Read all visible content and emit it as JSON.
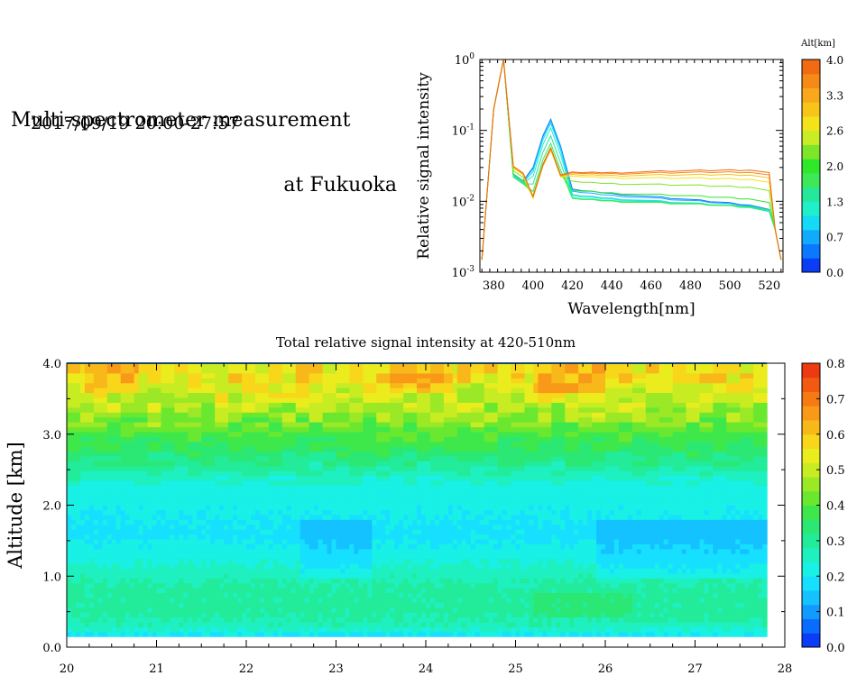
{
  "header": {
    "title_line1": "Multi-spectrometer measurement",
    "title_line2": "at Fukuoka",
    "datetime": "2017/09/19 20:00-27:57"
  },
  "chart_data": [
    {
      "type": "line",
      "xlabel": "Wavelength[nm]",
      "ylabel": "Relative signal intensity",
      "x_ticks": [
        "380",
        "400",
        "420",
        "440",
        "460",
        "480",
        "500",
        "520"
      ],
      "y_tick_labels": [
        {
          "base": "10",
          "exp": "0"
        },
        {
          "base": "10",
          "exp": "-1"
        },
        {
          "base": "10",
          "exp": "-2"
        },
        {
          "base": "10",
          "exp": "-3"
        }
      ],
      "y_scale": "log",
      "xlim": [
        373,
        527
      ],
      "ylim": [
        0.001,
        1
      ],
      "x": [
        374,
        380,
        385,
        390,
        395,
        400,
        405,
        409,
        414,
        420,
        425,
        430,
        435,
        440,
        445,
        450,
        455,
        460,
        465,
        470,
        475,
        480,
        485,
        490,
        495,
        500,
        505,
        510,
        515,
        520,
        523,
        526
      ],
      "shape": [
        0.0015,
        0.2,
        1.0,
        0.03,
        0.024,
        0.025,
        0.07,
        0.12,
        0.05,
        0.024,
        0.023,
        0.023,
        0.022,
        0.022,
        0.021,
        0.021,
        0.021,
        0.021,
        0.021,
        0.02,
        0.02,
        0.02,
        0.02,
        0.019,
        0.019,
        0.019,
        0.018,
        0.018,
        0.017,
        0.016,
        0.004,
        0.0015
      ],
      "series": [
        {
          "alt": 0.2,
          "peak2": 1.2,
          "cont": 0.62,
          "tilt": 0.95
        },
        {
          "alt": 0.5,
          "peak2": 1.15,
          "cont": 0.58,
          "tilt": 0.96
        },
        {
          "alt": 0.8,
          "peak2": 1.05,
          "cont": 0.52,
          "tilt": 0.97
        },
        {
          "alt": 1.1,
          "peak2": 0.9,
          "cont": 0.5,
          "tilt": 0.98
        },
        {
          "alt": 1.4,
          "peak2": 0.7,
          "cont": 0.47,
          "tilt": 1.0
        },
        {
          "alt": 1.7,
          "peak2": 0.55,
          "cont": 0.46,
          "tilt": 1.0
        },
        {
          "alt": 2.0,
          "peak2": 0.48,
          "cont": 0.6,
          "tilt": 1.0
        },
        {
          "alt": 2.4,
          "peak2": 0.45,
          "cont": 0.8,
          "tilt": 1.02
        },
        {
          "alt": 2.8,
          "peak2": 0.44,
          "cont": 0.95,
          "tilt": 1.04
        },
        {
          "alt": 3.2,
          "peak2": 0.45,
          "cont": 1.0,
          "tilt": 1.06
        },
        {
          "alt": 3.6,
          "peak2": 0.46,
          "cont": 1.05,
          "tilt": 1.07
        },
        {
          "alt": 3.9,
          "peak2": 0.47,
          "cont": 1.08,
          "tilt": 1.08
        }
      ],
      "legend": {
        "title": "Alt[km]",
        "ticks": [
          "4.0",
          "3.3",
          "2.6",
          "2.0",
          "1.3",
          "0.7",
          "0.0"
        ],
        "colors": [
          "#0a3df5",
          "#0a78ff",
          "#12aaff",
          "#16d9f5",
          "#1ff0c9",
          "#24e89a",
          "#3ee857",
          "#2fe82a",
          "#7fe52a",
          "#c8ec26",
          "#f4e21a",
          "#f8c41a",
          "#f8a81a",
          "#f58a16",
          "#f26a12"
        ]
      }
    },
    {
      "type": "heatmap",
      "title": "Total relative signal intensity at 420-510nm",
      "ylabel": "Altitude [km]",
      "x_ticks": [
        "20",
        "21",
        "22",
        "23",
        "24",
        "25",
        "26",
        "27",
        "28"
      ],
      "y_ticks": [
        "0.0",
        "1.0",
        "2.0",
        "3.0",
        "4.0"
      ],
      "xlim": [
        20,
        28
      ],
      "ylim": [
        0,
        4
      ],
      "data_x_range": [
        20,
        27.8
      ],
      "data_y_range": [
        0.15,
        4.0
      ],
      "colorbar": {
        "ticks": [
          "0.8",
          "0.7",
          "0.6",
          "0.5",
          "0.4",
          "0.3",
          "0.2",
          "0.1",
          "0.0"
        ],
        "range": [
          0,
          0.8
        ],
        "colors": [
          "#0a3df5",
          "#0a6cff",
          "#109cff",
          "#14c2ff",
          "#17e0ff",
          "#19f0e6",
          "#1ef0c0",
          "#22ec9a",
          "#2be874",
          "#3fe84a",
          "#6ae830",
          "#9ae826",
          "#c8ec22",
          "#eaec1e",
          "#f8d61a",
          "#f8b81a",
          "#f89a18",
          "#f57a14",
          "#f25a12",
          "#ee3a10"
        ]
      },
      "profile_alt": [
        0.15,
        0.3,
        0.5,
        0.8,
        1.0,
        1.3,
        1.6,
        2.0,
        2.3,
        2.6,
        2.9,
        3.2,
        3.5,
        3.8,
        4.0
      ],
      "profile_val": [
        0.18,
        0.27,
        0.29,
        0.29,
        0.27,
        0.22,
        0.19,
        0.21,
        0.23,
        0.31,
        0.37,
        0.44,
        0.5,
        0.55,
        0.55
      ]
    }
  ]
}
